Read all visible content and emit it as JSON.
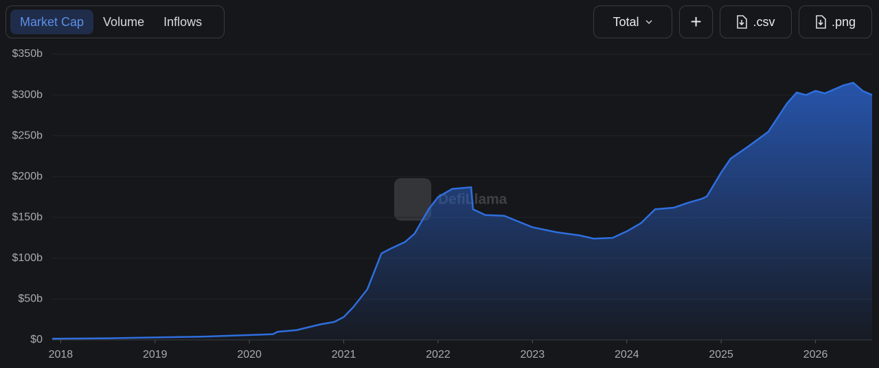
{
  "toolbar": {
    "tabs": [
      "Market Cap",
      "Volume",
      "Inflows"
    ],
    "active_tab": 0,
    "dropdown": "Total",
    "add_button": "+",
    "exports": [
      ".csv",
      ".png"
    ]
  },
  "watermark": "DefiLlama",
  "chart_data": {
    "type": "area",
    "color": "#2f6fdf",
    "grid": true,
    "x": [
      2017.91,
      2018.5,
      2019.0,
      2019.5,
      2020.0,
      2020.25,
      2020.3,
      2020.5,
      2020.75,
      2020.9,
      2021.0,
      2021.1,
      2021.25,
      2021.4,
      2021.5,
      2021.65,
      2021.75,
      2021.9,
      2022.0,
      2022.15,
      2022.35,
      2022.37,
      2022.5,
      2022.7,
      2022.85,
      2023.0,
      2023.25,
      2023.5,
      2023.65,
      2023.85,
      2024.0,
      2024.15,
      2024.3,
      2024.5,
      2024.65,
      2024.8,
      2024.85,
      2025.0,
      2025.1,
      2025.3,
      2025.5,
      2025.7,
      2025.8,
      2025.9,
      2026.0,
      2026.1,
      2026.3,
      2026.4,
      2026.5,
      2026.6
    ],
    "values": [
      1.5,
      2,
      3,
      4,
      6,
      7,
      10,
      12,
      19,
      22,
      28,
      40,
      62,
      106,
      112,
      120,
      130,
      160,
      175,
      185,
      187,
      160,
      153,
      152,
      145,
      138,
      132,
      128,
      124,
      125,
      133,
      143,
      160,
      162,
      168,
      173,
      176,
      205,
      222,
      238,
      255,
      290,
      303,
      300,
      305,
      302,
      312,
      315,
      305,
      300
    ],
    "xlim": [
      2017.91,
      2026.6
    ],
    "xticks": [
      2018,
      2019,
      2020,
      2021,
      2022,
      2023,
      2024,
      2025,
      2026
    ],
    "ylim": [
      0,
      350
    ],
    "yticks": [
      {
        "value": 0,
        "label": "$0"
      },
      {
        "value": 50,
        "label": "$50b"
      },
      {
        "value": 100,
        "label": "$100b"
      },
      {
        "value": 150,
        "label": "$150b"
      },
      {
        "value": 200,
        "label": "$200b"
      },
      {
        "value": 250,
        "label": "$250b"
      },
      {
        "value": 300,
        "label": "$300b"
      },
      {
        "value": 350,
        "label": "$350b"
      }
    ]
  }
}
